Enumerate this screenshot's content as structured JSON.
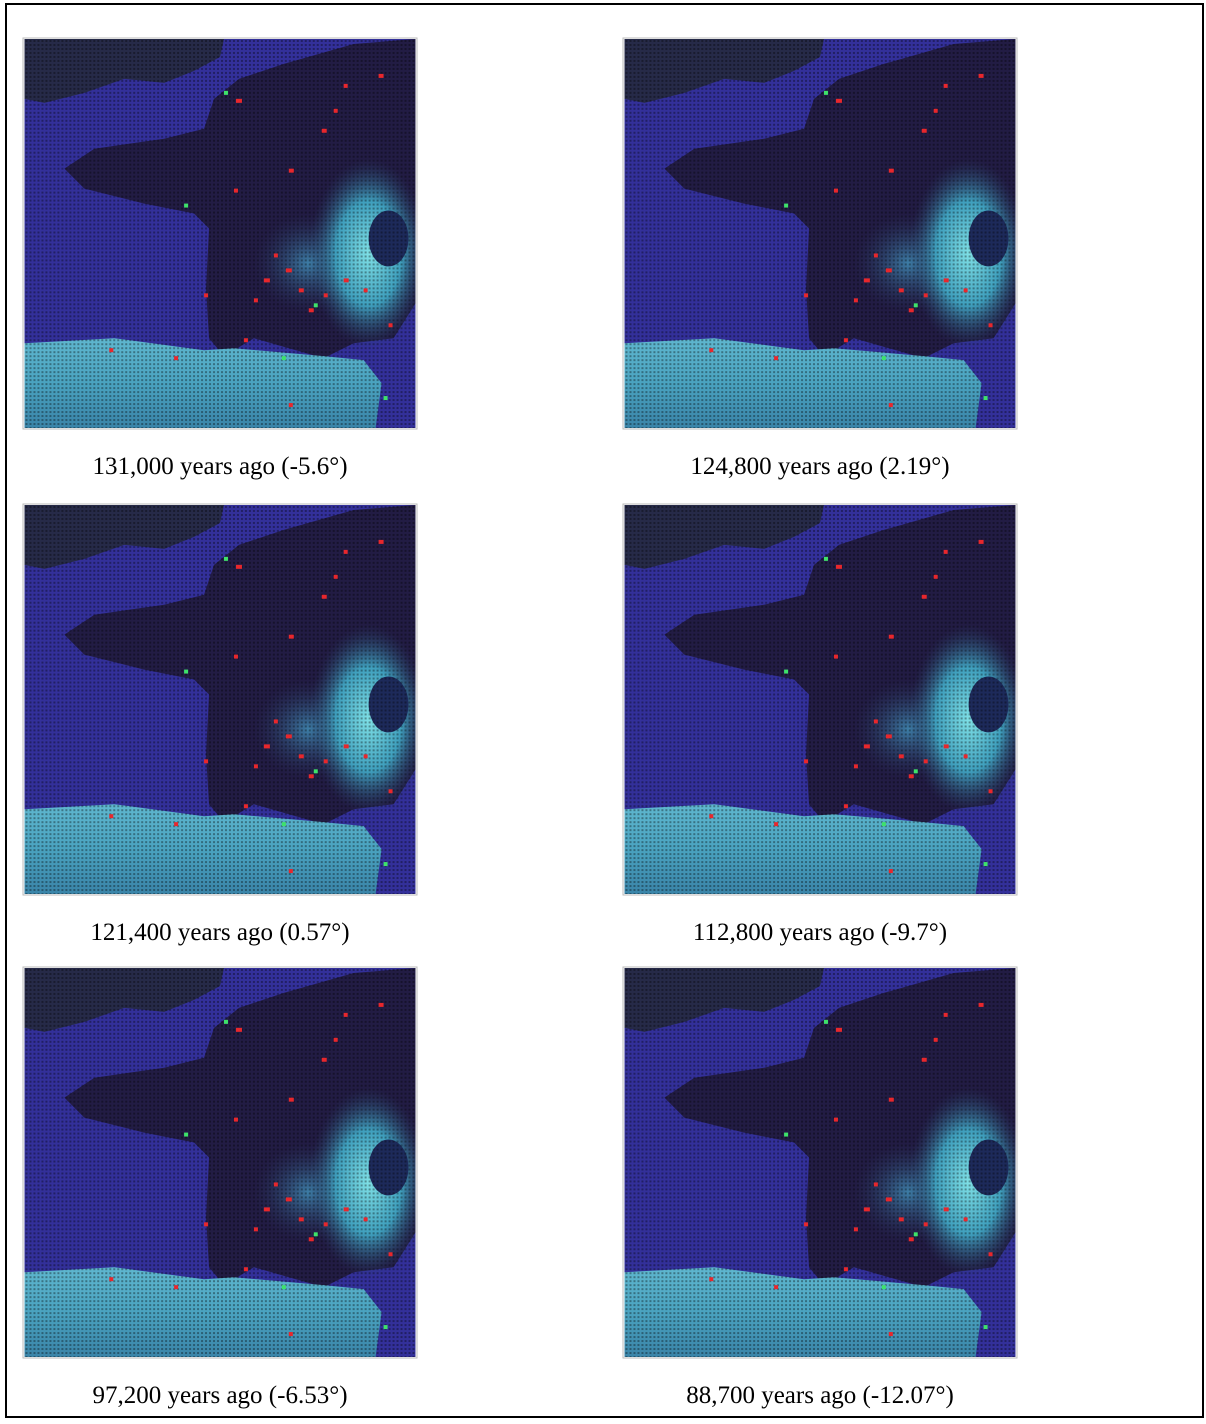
{
  "panels": [
    {
      "caption": "131,000 years ago (-5.6°)"
    },
    {
      "caption": "124,800 years ago (2.19°)"
    },
    {
      "caption": "121,400 years ago (0.57°)"
    },
    {
      "caption": "112,800 years ago (-9.7°)"
    },
    {
      "caption": "97,200 years ago (-6.53°)"
    },
    {
      "caption": "88,700 years ago (-12.07°)"
    }
  ]
}
